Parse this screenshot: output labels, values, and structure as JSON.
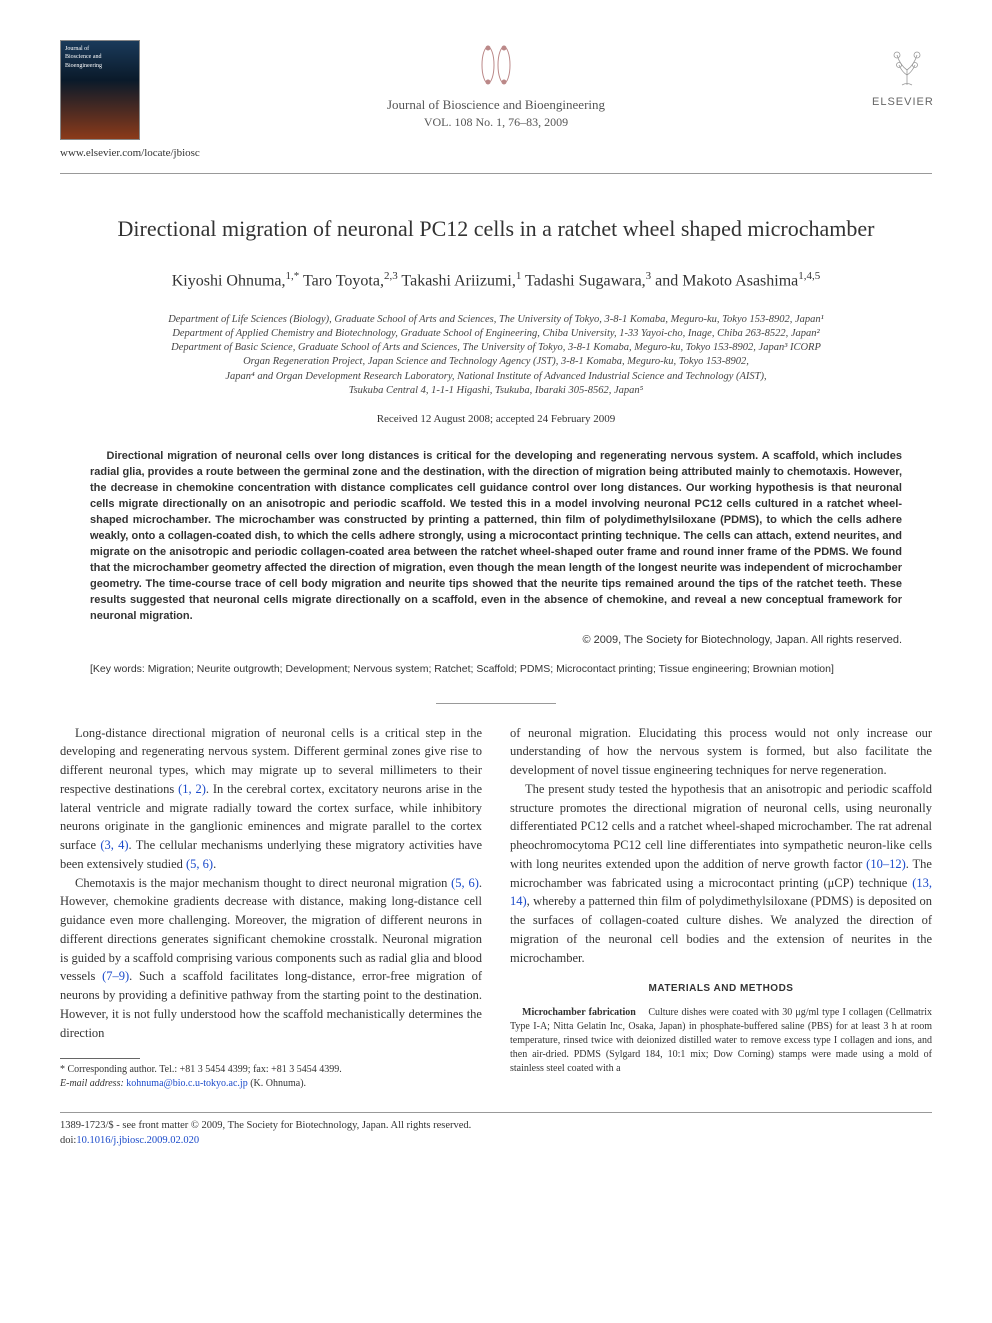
{
  "header": {
    "locate_url": "www.elsevier.com/locate/jbiosc",
    "journal_name": "Journal of Bioscience and Bioengineering",
    "volume_line": "VOL. 108 No. 1, 76–83, 2009",
    "publisher": "ELSEVIER",
    "thumb_label_top": "Journal of\nBioscience and\nBioengineering"
  },
  "title": "Directional migration of neuronal PC12 cells in a ratchet wheel shaped microchamber",
  "authors_html": "Kiyoshi Ohnuma,<sup>1,*</sup> Taro Toyota,<sup>2,3</sup> Takashi Ariizumi,<sup>1</sup> Tadashi Sugawara,<sup>3</sup> and Makoto Asashima<sup>1,4,5</sup>",
  "affiliations": [
    "Department of Life Sciences (Biology), Graduate School of Arts and Sciences, The University of Tokyo, 3-8-1 Komaba, Meguro-ku, Tokyo 153-8902, Japan¹",
    "Department of Applied Chemistry and Biotechnology, Graduate School of Engineering, Chiba University, 1-33 Yayoi-cho, Inage, Chiba 263-8522, Japan²",
    "Department of Basic Science, Graduate School of Arts and Sciences, The University of Tokyo, 3-8-1 Komaba, Meguro-ku, Tokyo 153-8902, Japan³ ICORP",
    "Organ Regeneration Project, Japan Science and Technology Agency (JST), 3-8-1 Komaba, Meguro-ku, Tokyo 153-8902,",
    "Japan⁴ and Organ Development Research Laboratory, National Institute of Advanced Industrial Science and Technology (AIST),",
    "Tsukuba Central 4, 1-1-1 Higashi, Tsukuba, Ibaraki 305-8562, Japan⁵"
  ],
  "received": "Received 12 August 2008; accepted 24 February 2009",
  "abstract": "Directional migration of neuronal cells over long distances is critical for the developing and regenerating nervous system. A scaffold, which includes radial glia, provides a route between the germinal zone and the destination, with the direction of migration being attributed mainly to chemotaxis. However, the decrease in chemokine concentration with distance complicates cell guidance control over long distances. Our working hypothesis is that neuronal cells migrate directionally on an anisotropic and periodic scaffold. We tested this in a model involving neuronal PC12 cells cultured in a ratchet wheel-shaped microchamber. The microchamber was constructed by printing a patterned, thin film of polydimethylsiloxane (PDMS), to which the cells adhere weakly, onto a collagen-coated dish, to which the cells adhere strongly, using a microcontact printing technique. The cells can attach, extend neurites, and migrate on the anisotropic and periodic collagen-coated area between the ratchet wheel-shaped outer frame and round inner frame of the PDMS. We found that the microchamber geometry affected the direction of migration, even though the mean length of the longest neurite was independent of microchamber geometry. The time-course trace of cell body migration and neurite tips showed that the neurite tips remained around the tips of the ratchet teeth. These results suggested that neuronal cells migrate directionally on a scaffold, even in the absence of chemokine, and reveal a new conceptual framework for neuronal migration.",
  "copyright": "© 2009, The Society for Biotechnology, Japan. All rights reserved.",
  "keywords": "[Key words: Migration; Neurite outgrowth; Development; Nervous system; Ratchet; Scaffold; PDMS; Microcontact printing; Tissue engineering; Brownian motion]",
  "body": {
    "p1a": "Long-distance directional migration of neuronal cells is a critical step in the developing and regenerating nervous system. Different germinal zones give rise to different neuronal types, which may migrate up to several millimeters to their respective destinations ",
    "p1_cite1": "(1, 2)",
    "p1b": ". In the cerebral cortex, excitatory neurons arise in the lateral ventricle and migrate radially toward the cortex surface, while inhibitory neurons originate in the ganglionic eminences and migrate parallel to the cortex surface ",
    "p1_cite2": "(3, 4)",
    "p1c": ". The cellular mechanisms underlying these migratory activities have been extensively studied ",
    "p1_cite3": "(5, 6)",
    "p1d": ".",
    "p2a": "Chemotaxis is the major mechanism thought to direct neuronal migration ",
    "p2_cite1": "(5, 6)",
    "p2b": ". However, chemokine gradients decrease with distance, making long-distance cell guidance even more challenging. Moreover, the migration of different neurons in different directions generates significant chemokine crosstalk. Neuronal migration is guided by a scaffold comprising various components such as radial glia and blood vessels ",
    "p2_cite2": "(7–9)",
    "p2c": ". Such a scaffold facilitates long-distance, error-free migration of neurons by providing a definitive pathway from the starting point to the destination. However, it is not fully understood how the scaffold mechanistically determines the direction",
    "p3": "of neuronal migration. Elucidating this process would not only increase our understanding of how the nervous system is formed, but also facilitate the development of novel tissue engineering techniques for nerve regeneration.",
    "p4a": "The present study tested the hypothesis that an anisotropic and periodic scaffold structure promotes the directional migration of neuronal cells, using neuronally differentiated PC12 cells and a ratchet wheel-shaped microchamber. The rat adrenal pheochromocytoma PC12 cell line differentiates into sympathetic neuron-like cells with long neurites extended upon the addition of nerve growth factor ",
    "p4_cite1": "(10–12)",
    "p4b": ". The microchamber was fabricated using a microcontact printing (μCP) technique ",
    "p4_cite2": "(13, 14)",
    "p4c": ", whereby a patterned thin film of polydimethylsiloxane (PDMS) is deposited on the surfaces of collagen-coated culture dishes. We analyzed the direction of migration of the neuronal cell bodies and the extension of neurites in the microchamber.",
    "methods_heading": "MATERIALS AND METHODS",
    "m1_head": "Microchamber fabrication",
    "m1": "Culture dishes were coated with 30 μg/ml type I collagen (Cellmatrix Type I-A; Nitta Gelatin Inc, Osaka, Japan) in phosphate-buffered saline (PBS) for at least 3 h at room temperature, rinsed twice with deionized distilled water to remove excess type I collagen and ions, and then air-dried. PDMS (Sylgard 184, 10:1 mix; Dow Corning) stamps were made using a mold of stainless steel coated with a"
  },
  "footnote": {
    "corr": "* Corresponding author. Tel.: +81 3 5454 4399; fax: +81 3 5454 4399.",
    "email_label": "E-mail address:",
    "email": "kohnuma@bio.c.u-tokyo.ac.jp",
    "email_who": "(K. Ohnuma)."
  },
  "footer": {
    "line1": "1389-1723/$ - see front matter © 2009, The Society for Biotechnology, Japan. All rights reserved.",
    "line2": "doi:10.1016/j.jbiosc.2009.02.020"
  },
  "colors": {
    "citation": "#1a4aca",
    "text": "#333333",
    "rule": "#999999"
  }
}
